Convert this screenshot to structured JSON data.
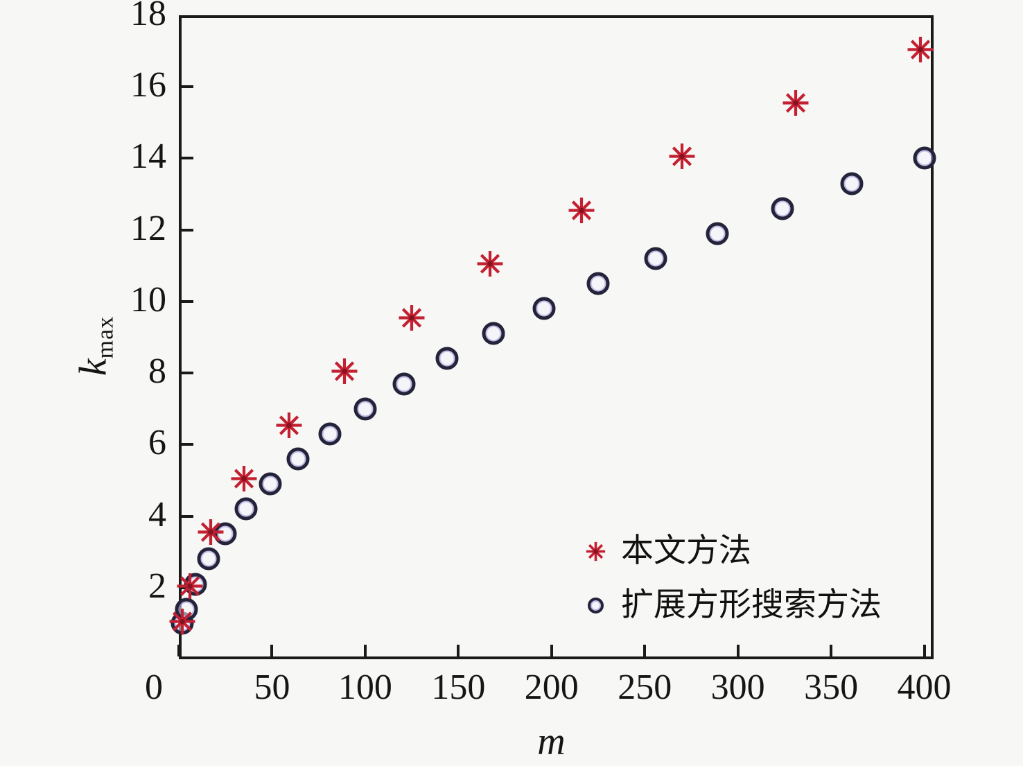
{
  "figure": {
    "background_color": "#f7f7f5",
    "frame_color": "#1a1a1a",
    "text_color": "#151515"
  },
  "chart_data": {
    "type": "scatter",
    "title": "",
    "xlabel": "m",
    "ylabel": "k_max",
    "ylabel_base": "k",
    "ylabel_sub": "max",
    "xlim": [
      0,
      405
    ],
    "ylim": [
      0,
      18
    ],
    "x_ticks": [
      0,
      50,
      100,
      150,
      200,
      250,
      300,
      350,
      400
    ],
    "y_ticks": [
      2,
      4,
      6,
      8,
      10,
      12,
      14,
      16,
      18
    ],
    "grid": false,
    "legend_position": "inside-lower-right",
    "series": [
      {
        "name": "本文方法",
        "marker": "asterisk",
        "color": "#c32031",
        "points": [
          [
            2,
            1
          ],
          [
            6,
            2
          ],
          [
            17,
            3.5
          ],
          [
            35,
            5
          ],
          [
            59,
            6.5
          ],
          [
            89,
            8
          ],
          [
            125,
            9.5
          ],
          [
            167,
            11
          ],
          [
            216,
            12.5
          ],
          [
            270,
            14
          ],
          [
            331,
            15.5
          ],
          [
            398,
            17
          ]
        ]
      },
      {
        "name": "扩展方形搜索方法",
        "marker": "open-circle",
        "color": "#23233a",
        "accent_tint": "#6e61c8",
        "points": [
          [
            2,
            1
          ],
          [
            4,
            1.4
          ],
          [
            9,
            2.1
          ],
          [
            16,
            2.8
          ],
          [
            25,
            3.5
          ],
          [
            36,
            4.2
          ],
          [
            49,
            4.9
          ],
          [
            64,
            5.6
          ],
          [
            81,
            6.3
          ],
          [
            100,
            7
          ],
          [
            121,
            7.7
          ],
          [
            144,
            8.4
          ],
          [
            169,
            9.1
          ],
          [
            196,
            9.8
          ],
          [
            225,
            10.5
          ],
          [
            256,
            11.2
          ],
          [
            289,
            11.9
          ],
          [
            324,
            12.6
          ],
          [
            361,
            13.3
          ],
          [
            400,
            14
          ]
        ]
      }
    ]
  }
}
